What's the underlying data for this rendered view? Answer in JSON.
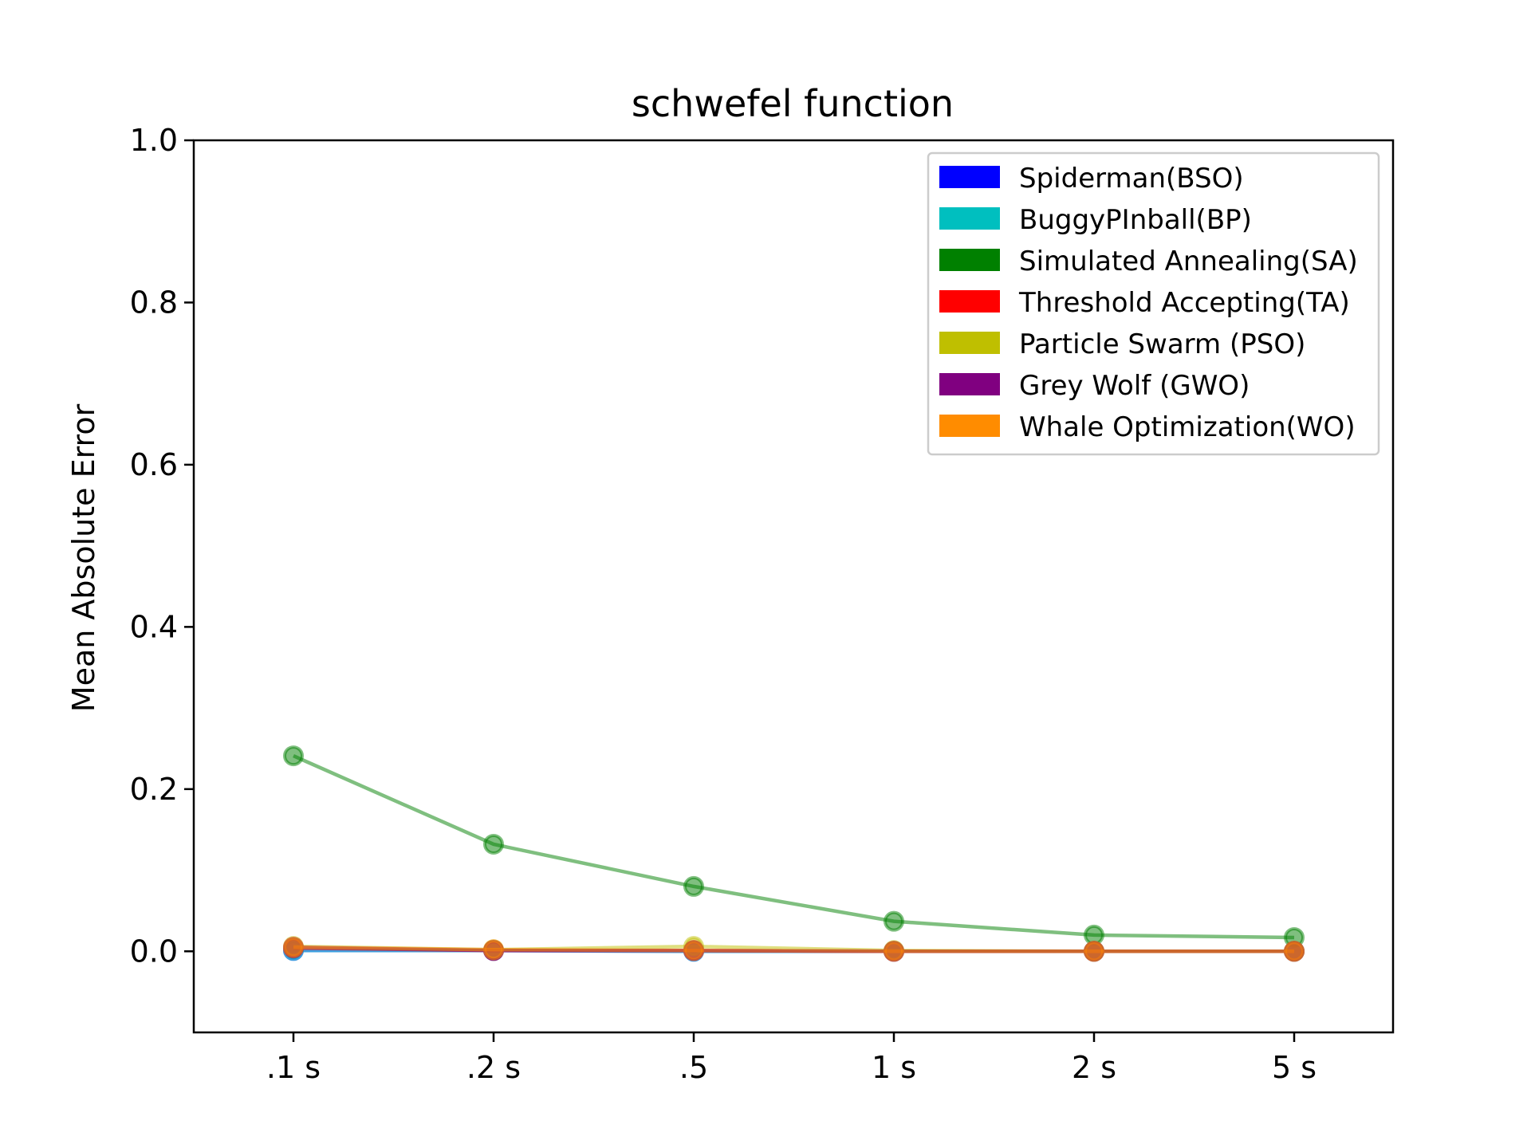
{
  "chart_data": {
    "type": "line",
    "title": "schwefel function",
    "xlabel": "",
    "ylabel": "Mean Absolute Error",
    "categories": [
      ".1 s",
      ".2 s",
      ".5",
      "1 s",
      "2 s",
      "5 s"
    ],
    "ylim": [
      -0.1,
      1.0
    ],
    "yticks": [
      0.0,
      0.2,
      0.4,
      0.6,
      0.8,
      1.0
    ],
    "ytick_labels": [
      "0.0",
      "0.2",
      "0.4",
      "0.6",
      "0.8",
      "1.0"
    ],
    "grid": false,
    "legend_position": "top-right",
    "series": [
      {
        "name": "Spiderman(BSO)",
        "color": "#0000ff",
        "values": [
          0.001,
          0.001,
          0.0,
          0.0,
          0.0,
          0.0
        ]
      },
      {
        "name": "BuggyPInball(BP)",
        "color": "#00bfbf",
        "values": [
          0.001,
          0.001,
          0.0,
          0.0,
          0.0,
          0.0
        ]
      },
      {
        "name": "Simulated Annealing(SA)",
        "color": "#008000",
        "values": [
          0.241,
          0.132,
          0.08,
          0.037,
          0.02,
          0.017
        ]
      },
      {
        "name": "Threshold Accepting(TA)",
        "color": "#ff0000",
        "values": [
          0.004,
          0.001,
          0.001,
          0.0,
          0.0,
          0.0
        ]
      },
      {
        "name": "Particle Swarm (PSO)",
        "color": "#bfbf00",
        "values": [
          0.006,
          0.002,
          0.006,
          0.001,
          0.0,
          0.0
        ]
      },
      {
        "name": "Grey Wolf (GWO)",
        "color": "#800080",
        "values": [
          0.005,
          0.001,
          0.001,
          0.0,
          0.0,
          0.0
        ]
      },
      {
        "name": "Whale Optimization(WO)",
        "color": "#ff8c00",
        "values": [
          0.005,
          0.002,
          0.001,
          0.0,
          0.0,
          0.0
        ]
      }
    ]
  }
}
